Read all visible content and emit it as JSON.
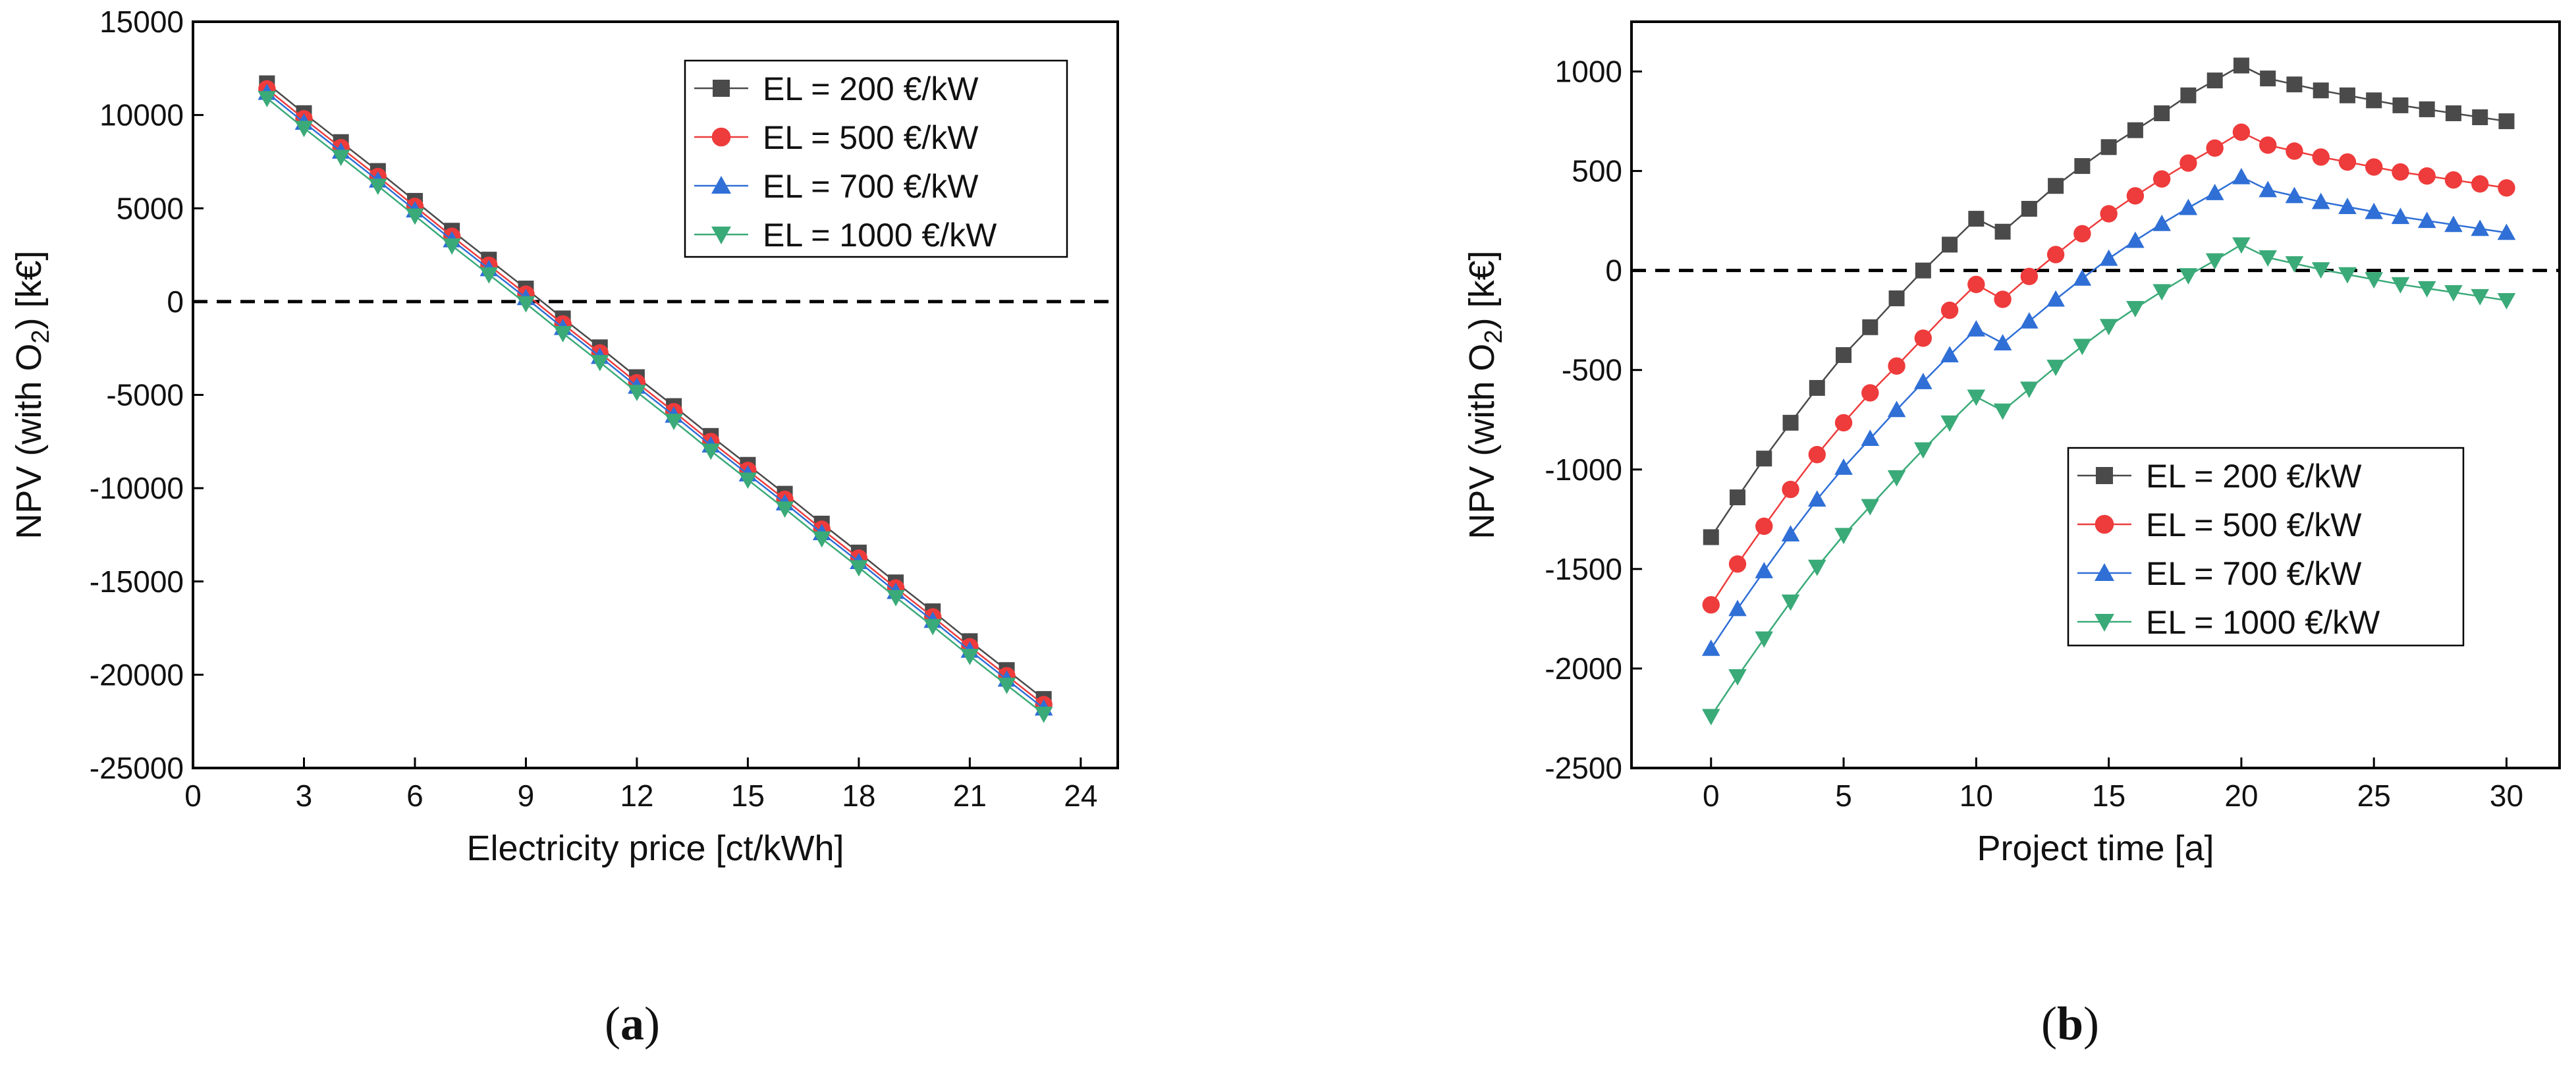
{
  "chart_data": [
    {
      "type": "line",
      "panel": "a",
      "caption": {
        "open": "(",
        "label": "a",
        "close": ")"
      },
      "xlabel": "Electricity price [ct/kWh]",
      "ylabel": "NPV (with O₂) [k€]",
      "ylabel_parts": {
        "before": "NPV (with O",
        "sub": "2",
        "after": ") [k€]"
      },
      "xlim": [
        0,
        25
      ],
      "ylim": [
        -25000,
        15000
      ],
      "xticks": [
        0,
        3,
        6,
        9,
        12,
        15,
        18,
        21,
        24
      ],
      "yticks": [
        -25000,
        -20000,
        -15000,
        -10000,
        -5000,
        0,
        5000,
        10000,
        15000
      ],
      "reference_line": {
        "y": 0,
        "style": "dashed"
      },
      "legend_position": "top-right",
      "x": [
        2,
        3,
        4,
        5,
        6,
        7,
        8,
        9,
        10,
        11,
        12,
        13,
        14,
        15,
        16,
        17,
        18,
        19,
        20,
        21,
        22,
        23
      ],
      "series": [
        {
          "name": "EL = 200 €/kW",
          "marker": "square",
          "color": "#4a4a4a",
          "values": [
            11700,
            10100,
            8550,
            7000,
            5400,
            3800,
            2250,
            700,
            -900,
            -2450,
            -4050,
            -5600,
            -7200,
            -8750,
            -10300,
            -11900,
            -13450,
            -15050,
            -16600,
            -18200,
            -19750,
            -21300
          ]
        },
        {
          "name": "EL = 500 €/kW",
          "marker": "circle",
          "color": "#ee3b3b",
          "values": [
            11400,
            9800,
            8250,
            6700,
            5100,
            3500,
            1950,
            400,
            -1200,
            -2750,
            -4350,
            -5900,
            -7500,
            -9050,
            -10600,
            -12200,
            -13750,
            -15350,
            -16900,
            -18500,
            -20050,
            -21600
          ]
        },
        {
          "name": "EL = 700 €/kW",
          "marker": "triangle-up",
          "color": "#2f6fd6",
          "values": [
            11200,
            9600,
            8050,
            6500,
            4900,
            3300,
            1750,
            200,
            -1400,
            -2950,
            -4550,
            -6100,
            -7700,
            -9250,
            -10800,
            -12400,
            -13950,
            -15550,
            -17100,
            -18700,
            -20250,
            -21800
          ]
        },
        {
          "name": "EL = 1000 €/kW",
          "marker": "triangle-down",
          "color": "#3aaa78",
          "values": [
            10900,
            9300,
            7750,
            6200,
            4600,
            3000,
            1450,
            -100,
            -1700,
            -3250,
            -4850,
            -6400,
            -8000,
            -9550,
            -11100,
            -12700,
            -14250,
            -15850,
            -17400,
            -19000,
            -20550,
            -22100
          ]
        }
      ]
    },
    {
      "type": "line",
      "panel": "b",
      "caption": {
        "open": "(",
        "label": "b",
        "close": ")"
      },
      "xlabel": "Project time [a]",
      "ylabel": "NPV (with O₂) [k€]",
      "ylabel_parts": {
        "before": "NPV (with O",
        "sub": "2",
        "after": ") [k€]"
      },
      "xlim": [
        -3,
        32
      ],
      "ylim": [
        -2500,
        1250
      ],
      "xticks": [
        0,
        5,
        10,
        15,
        20,
        25,
        30
      ],
      "yticks": [
        -2500,
        -2000,
        -1500,
        -1000,
        -500,
        0,
        500,
        1000
      ],
      "reference_line": {
        "y": 0,
        "style": "dashed"
      },
      "legend_position": "center-right",
      "x": [
        0,
        1,
        2,
        3,
        4,
        5,
        6,
        7,
        8,
        9,
        10,
        11,
        12,
        13,
        14,
        15,
        16,
        17,
        18,
        19,
        20,
        21,
        22,
        23,
        24,
        25,
        26,
        27,
        28,
        29,
        30
      ],
      "series": [
        {
          "name": "EL = 200 €/kW",
          "marker": "square",
          "color": "#4a4a4a",
          "values": [
            -1340,
            -1140,
            -945,
            -765,
            -590,
            -425,
            -285,
            -140,
            0,
            130,
            260,
            195,
            310,
            425,
            525,
            620,
            705,
            790,
            880,
            955,
            1030,
            965,
            935,
            905,
            880,
            855,
            830,
            810,
            790,
            770,
            750
          ]
        },
        {
          "name": "EL = 500 €/kW",
          "marker": "circle",
          "color": "#ee3b3b",
          "values": [
            -1680,
            -1475,
            -1285,
            -1100,
            -925,
            -765,
            -615,
            -480,
            -340,
            -200,
            -70,
            -145,
            -30,
            80,
            185,
            285,
            375,
            460,
            540,
            615,
            695,
            630,
            600,
            570,
            545,
            520,
            495,
            475,
            455,
            435,
            415
          ]
        },
        {
          "name": "EL = 700 €/kW",
          "marker": "triangle-up",
          "color": "#2f6fd6",
          "values": [
            -1900,
            -1700,
            -1510,
            -1325,
            -1150,
            -990,
            -845,
            -700,
            -560,
            -425,
            -295,
            -365,
            -255,
            -145,
            -40,
            60,
            150,
            235,
            315,
            390,
            470,
            405,
            375,
            345,
            320,
            295,
            270,
            250,
            230,
            210,
            190
          ]
        },
        {
          "name": "EL = 1000 €/kW",
          "marker": "triangle-down",
          "color": "#3aaa78",
          "values": [
            -2240,
            -2040,
            -1850,
            -1665,
            -1490,
            -1330,
            -1185,
            -1040,
            -900,
            -765,
            -635,
            -705,
            -595,
            -485,
            -380,
            -280,
            -190,
            -105,
            -25,
            50,
            130,
            65,
            35,
            5,
            -20,
            -45,
            -70,
            -90,
            -110,
            -130,
            -150
          ]
        }
      ]
    }
  ]
}
